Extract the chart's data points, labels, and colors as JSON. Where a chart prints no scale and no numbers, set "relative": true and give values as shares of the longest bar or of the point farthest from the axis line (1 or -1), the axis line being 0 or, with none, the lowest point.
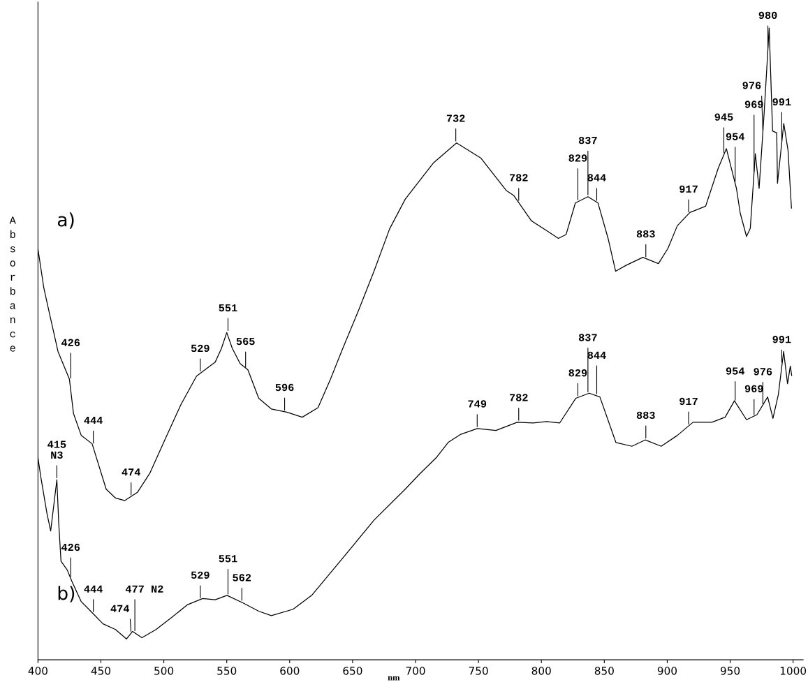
{
  "chart_data": {
    "type": "line",
    "relative": true,
    "xlabel": "nm",
    "ylabel": "Absorbance",
    "xlim": [
      400,
      1008
    ],
    "xticks": [
      400,
      450,
      500,
      550,
      600,
      650,
      700,
      750,
      800,
      850,
      900,
      950,
      1000
    ],
    "grid": false,
    "legend": "left",
    "marker": "none",
    "line_style": "solid",
    "series": [
      {
        "name": "a)",
        "color": "#000000",
        "x": [
          400,
          404.7,
          409.7,
          415.9,
          425,
          428.2,
          434.4,
          443,
          454.2,
          461.6,
          469,
          479,
          488.8,
          501.2,
          513.6,
          526,
          540.8,
          545.8,
          550,
          554.4,
          560.6,
          566.8,
          575.4,
          585.4,
          597.7,
          610,
          622.5,
          632.4,
          642.2,
          654.7,
          667,
          679.4,
          691.8,
          714,
          732.6,
          752,
          772,
          778,
          792,
          806,
          813.5,
          819.6,
          827,
          837,
          845,
          853,
          859,
          867,
          880.6,
          893,
          900.5,
          908,
          918,
          930.5,
          940.5,
          947,
          955,
          958,
          963,
          966,
          970,
          973,
          977,
          981,
          983.7,
          987,
          987.6,
          992.6,
          996,
          998.7
        ],
        "values": [
          0.65,
          0.588,
          0.543,
          0.488,
          0.444,
          0.39,
          0.355,
          0.342,
          0.27,
          0.256,
          0.252,
          0.265,
          0.295,
          0.35,
          0.404,
          0.449,
          0.471,
          0.493,
          0.518,
          0.493,
          0.469,
          0.459,
          0.414,
          0.397,
          0.392,
          0.384,
          0.399,
          0.444,
          0.493,
          0.553,
          0.615,
          0.682,
          0.729,
          0.786,
          0.818,
          0.794,
          0.743,
          0.735,
          0.695,
          0.677,
          0.667,
          0.673,
          0.723,
          0.733,
          0.723,
          0.667,
          0.615,
          0.624,
          0.637,
          0.627,
          0.651,
          0.687,
          0.708,
          0.718,
          0.778,
          0.809,
          0.746,
          0.707,
          0.67,
          0.683,
          0.801,
          0.746,
          0.865,
          1.0,
          0.837,
          0.834,
          0.754,
          0.849,
          0.806,
          0.715
        ]
      },
      {
        "name": "b)",
        "color": "#000000",
        "x": [
          400,
          402.2,
          407.2,
          410.1,
          415,
          416.5,
          418.3,
          423.3,
          427,
          434.4,
          441.9,
          451.7,
          461.6,
          470.3,
          475.2,
          482.6,
          493.8,
          506.2,
          518.6,
          530.9,
          540.8,
          550.2,
          563,
          575.4,
          585.4,
          602.7,
          617.5,
          642.2,
          667,
          691.8,
          702.7,
          716.5,
          725.9,
          736,
          749.1,
          763.9,
          780.8,
          793.5,
          804.1,
          814.6,
          827.4,
          838,
          846.5,
          859.2,
          871.9,
          882.5,
          895.2,
          907.9,
          920.5,
          935.5,
          946,
          953.4,
          963,
          971.3,
          979.8,
          984,
          988.3,
          992.5,
          995.6,
          997.8,
          998.9
        ],
        "values": [
          0.32,
          0.29,
          0.231,
          0.204,
          0.285,
          0.216,
          0.156,
          0.142,
          0.124,
          0.092,
          0.077,
          0.057,
          0.048,
          0.033,
          0.045,
          0.035,
          0.048,
          0.067,
          0.087,
          0.097,
          0.095,
          0.102,
          0.09,
          0.077,
          0.07,
          0.08,
          0.102,
          0.161,
          0.221,
          0.27,
          0.293,
          0.32,
          0.344,
          0.357,
          0.366,
          0.363,
          0.376,
          0.375,
          0.377,
          0.375,
          0.414,
          0.422,
          0.416,
          0.344,
          0.338,
          0.348,
          0.338,
          0.355,
          0.376,
          0.376,
          0.384,
          0.41,
          0.38,
          0.388,
          0.416,
          0.382,
          0.42,
          0.488,
          0.437,
          0.465,
          0.45
        ]
      }
    ],
    "annotations": [
      {
        "text": "426",
        "x": 426,
        "y": 0.443
      },
      {
        "text": "444",
        "x": 444,
        "y": 0.34
      },
      {
        "text": "474",
        "x": 474,
        "y": 0.258
      },
      {
        "text": "529",
        "x": 529,
        "y": 0.454
      },
      {
        "text": "551",
        "x": 551,
        "y": 0.518
      },
      {
        "text": "565",
        "x": 565,
        "y": 0.46
      },
      {
        "text": "596",
        "x": 596,
        "y": 0.392
      },
      {
        "text": "732",
        "x": 732,
        "y": 0.818
      },
      {
        "text": "782",
        "x": 782,
        "y": 0.724
      },
      {
        "text": "829",
        "x": 829,
        "y": 0.725
      },
      {
        "text": "837",
        "x": 837,
        "y": 0.733
      },
      {
        "text": "844",
        "x": 844,
        "y": 0.724
      },
      {
        "text": "883",
        "x": 883,
        "y": 0.635
      },
      {
        "text": "917",
        "x": 917,
        "y": 0.706
      },
      {
        "text": "945",
        "x": 945,
        "y": 0.8
      },
      {
        "text": "954",
        "x": 954,
        "y": 0.754
      },
      {
        "text": "969",
        "x": 969,
        "y": 0.77
      },
      {
        "text": "976",
        "x": 976,
        "y": 0.835
      },
      {
        "text": "980",
        "x": 980,
        "y": 0.966
      },
      {
        "text": "991",
        "x": 991,
        "y": 0.819
      },
      {
        "text": "415\nN3",
        "x": 415,
        "y": 0.285
      },
      {
        "text": "426",
        "x": 426,
        "y": 0.129
      },
      {
        "text": "444",
        "x": 444,
        "y": 0.073
      },
      {
        "text": "474",
        "x": 474,
        "y": 0.042
      },
      {
        "text": "477 N2",
        "x": 477,
        "y": 0.043
      },
      {
        "text": "529",
        "x": 529,
        "y": 0.095
      },
      {
        "text": "551",
        "x": 551,
        "y": 0.101
      },
      {
        "text": "562",
        "x": 562,
        "y": 0.091
      },
      {
        "text": "749",
        "x": 749,
        "y": 0.366
      },
      {
        "text": "782",
        "x": 782,
        "y": 0.376
      },
      {
        "text": "829",
        "x": 829,
        "y": 0.415
      },
      {
        "text": "837",
        "x": 837,
        "y": 0.421
      },
      {
        "text": "844",
        "x": 844,
        "y": 0.418
      },
      {
        "text": "883",
        "x": 883,
        "y": 0.348
      },
      {
        "text": "917",
        "x": 917,
        "y": 0.37
      },
      {
        "text": "954",
        "x": 954,
        "y": 0.408
      },
      {
        "text": "969",
        "x": 969,
        "y": 0.385
      },
      {
        "text": "976",
        "x": 976,
        "y": 0.402
      },
      {
        "text": "991",
        "x": 991,
        "y": 0.468
      }
    ]
  }
}
